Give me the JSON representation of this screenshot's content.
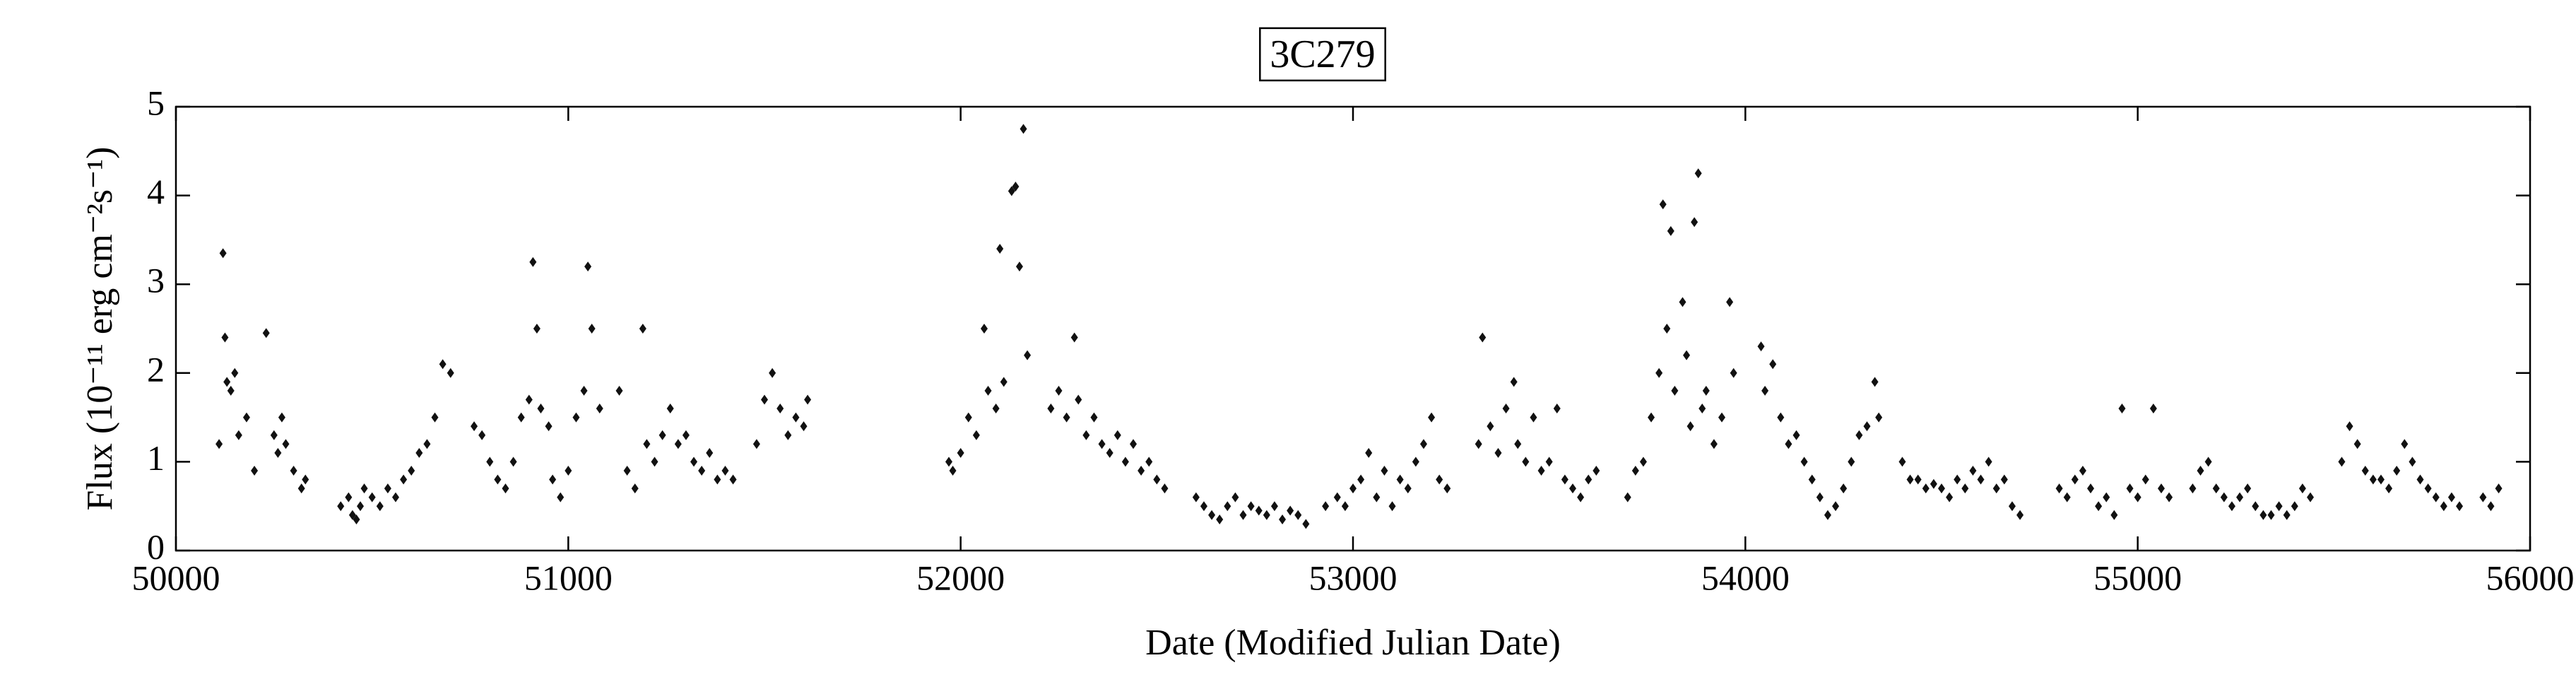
{
  "chart_data": {
    "type": "scatter",
    "title": "3C279",
    "x_label": "Date (Modified Julian Date)",
    "y_label": "Flux (10⁻¹¹ erg cm⁻²s⁻¹)",
    "color": "#111111",
    "marker": "diamond",
    "xlim": [
      50000,
      56000
    ],
    "ylim": [
      0,
      5
    ],
    "xticks": [
      50000,
      51000,
      52000,
      53000,
      54000,
      55000,
      56000
    ],
    "yticks": [
      0,
      1,
      2,
      3,
      4,
      5
    ],
    "grid": false,
    "x": [
      50110,
      50120,
      50125,
      50130,
      50140,
      50150,
      50160,
      50180,
      50200,
      50230,
      50250,
      50260,
      50270,
      50280,
      50300,
      50320,
      50330,
      50420,
      50440,
      50450,
      50460,
      50470,
      50480,
      50500,
      50520,
      50540,
      50560,
      50580,
      50600,
      50620,
      50640,
      50660,
      50680,
      50700,
      50760,
      50780,
      50800,
      50820,
      50840,
      50860,
      50880,
      50900,
      50910,
      50920,
      50930,
      50950,
      50960,
      50980,
      51000,
      51020,
      51040,
      51050,
      51060,
      51080,
      51130,
      51150,
      51170,
      51190,
      51200,
      51220,
      51240,
      51260,
      51280,
      51300,
      51320,
      51340,
      51360,
      51380,
      51400,
      51420,
      51480,
      51500,
      51520,
      51540,
      51560,
      51580,
      51600,
      51610,
      51970,
      51980,
      52000,
      52020,
      52040,
      52060,
      52070,
      52090,
      52100,
      52110,
      52130,
      52140,
      52150,
      52160,
      52170,
      52230,
      52250,
      52270,
      52290,
      52300,
      52320,
      52340,
      52360,
      52380,
      52400,
      52420,
      52440,
      52460,
      52480,
      52500,
      52520,
      52600,
      52620,
      52640,
      52660,
      52680,
      52700,
      52720,
      52740,
      52760,
      52780,
      52800,
      52820,
      52840,
      52860,
      52880,
      52930,
      52960,
      52980,
      53000,
      53020,
      53040,
      53060,
      53080,
      53100,
      53120,
      53140,
      53160,
      53180,
      53200,
      53220,
      53240,
      53320,
      53330,
      53350,
      53370,
      53390,
      53410,
      53420,
      53440,
      53460,
      53480,
      53500,
      53520,
      53540,
      53560,
      53580,
      53600,
      53620,
      53700,
      53720,
      53740,
      53760,
      53780,
      53790,
      53800,
      53810,
      53820,
      53840,
      53850,
      53860,
      53870,
      53880,
      53890,
      53900,
      53920,
      53940,
      53960,
      53970,
      54040,
      54050,
      54070,
      54090,
      54110,
      54130,
      54150,
      54170,
      54190,
      54210,
      54230,
      54250,
      54270,
      54290,
      54310,
      54330,
      54340,
      54400,
      54420,
      54440,
      54460,
      54480,
      54500,
      54520,
      54540,
      54560,
      54580,
      54600,
      54620,
      54640,
      54660,
      54680,
      54700,
      54800,
      54820,
      54840,
      54860,
      54880,
      54900,
      54920,
      54940,
      54960,
      54980,
      55000,
      55020,
      55040,
      55060,
      55080,
      55140,
      55160,
      55180,
      55200,
      55220,
      55240,
      55260,
      55280,
      55300,
      55320,
      55340,
      55360,
      55380,
      55400,
      55420,
      55440,
      55520,
      55540,
      55560,
      55580,
      55600,
      55620,
      55640,
      55660,
      55680,
      55700,
      55720,
      55740,
      55760,
      55780,
      55800,
      55820,
      55880,
      55900,
      55920
    ],
    "values": [
      1.2,
      3.35,
      2.4,
      1.9,
      1.8,
      2.0,
      1.3,
      1.5,
      0.9,
      2.45,
      1.3,
      1.1,
      1.5,
      1.2,
      0.9,
      0.7,
      0.8,
      0.5,
      0.6,
      0.4,
      0.35,
      0.5,
      0.7,
      0.6,
      0.5,
      0.7,
      0.6,
      0.8,
      0.9,
      1.1,
      1.2,
      1.5,
      2.1,
      2.0,
      1.4,
      1.3,
      1.0,
      0.8,
      0.7,
      1.0,
      1.5,
      1.7,
      3.25,
      2.5,
      1.6,
      1.4,
      0.8,
      0.6,
      0.9,
      1.5,
      1.8,
      3.2,
      2.5,
      1.6,
      1.8,
      0.9,
      0.7,
      2.5,
      1.2,
      1.0,
      1.3,
      1.6,
      1.2,
      1.3,
      1.0,
      0.9,
      1.1,
      0.8,
      0.9,
      0.8,
      1.2,
      1.7,
      2.0,
      1.6,
      1.3,
      1.5,
      1.4,
      1.7,
      1.0,
      0.9,
      1.1,
      1.5,
      1.3,
      2.5,
      1.8,
      1.6,
      3.4,
      1.9,
      4.05,
      4.1,
      3.2,
      4.75,
      2.2,
      1.6,
      1.8,
      1.5,
      2.4,
      1.7,
      1.3,
      1.5,
      1.2,
      1.1,
      1.3,
      1.0,
      1.2,
      0.9,
      1.0,
      0.8,
      0.7,
      0.6,
      0.5,
      0.4,
      0.35,
      0.5,
      0.6,
      0.4,
      0.5,
      0.45,
      0.4,
      0.5,
      0.35,
      0.45,
      0.4,
      0.3,
      0.5,
      0.6,
      0.5,
      0.7,
      0.8,
      1.1,
      0.6,
      0.9,
      0.5,
      0.8,
      0.7,
      1.0,
      1.2,
      1.5,
      0.8,
      0.7,
      1.2,
      2.4,
      1.4,
      1.1,
      1.6,
      1.9,
      1.2,
      1.0,
      1.5,
      0.9,
      1.0,
      1.6,
      0.8,
      0.7,
      0.6,
      0.8,
      0.9,
      0.6,
      0.9,
      1.0,
      1.5,
      2.0,
      3.9,
      2.5,
      3.6,
      1.8,
      2.8,
      2.2,
      1.4,
      3.7,
      4.25,
      1.6,
      1.8,
      1.2,
      1.5,
      2.8,
      2.0,
      2.3,
      1.8,
      2.1,
      1.5,
      1.2,
      1.3,
      1.0,
      0.8,
      0.6,
      0.4,
      0.5,
      0.7,
      1.0,
      1.3,
      1.4,
      1.9,
      1.5,
      1.0,
      0.8,
      0.8,
      0.7,
      0.75,
      0.7,
      0.6,
      0.8,
      0.7,
      0.9,
      0.8,
      1.0,
      0.7,
      0.8,
      0.5,
      0.4,
      0.7,
      0.6,
      0.8,
      0.9,
      0.7,
      0.5,
      0.6,
      0.4,
      1.6,
      0.7,
      0.6,
      0.8,
      1.6,
      0.7,
      0.6,
      0.7,
      0.9,
      1.0,
      0.7,
      0.6,
      0.5,
      0.6,
      0.7,
      0.5,
      0.4,
      0.4,
      0.5,
      0.4,
      0.5,
      0.7,
      0.6,
      1.0,
      1.4,
      1.2,
      0.9,
      0.8,
      0.8,
      0.7,
      0.9,
      1.2,
      1.0,
      0.8,
      0.7,
      0.6,
      0.5,
      0.6,
      0.5,
      0.6,
      0.5,
      0.7
    ]
  }
}
